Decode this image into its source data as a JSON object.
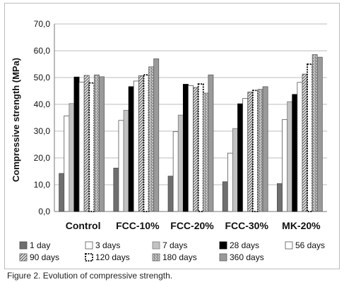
{
  "caption": "Figure 2. Evolution of compressive strength.",
  "chart_data": {
    "type": "bar",
    "ylabel": "Compressive strength (MPa)",
    "xlabel": "",
    "ylim": [
      0,
      70
    ],
    "yticks": [
      "0,0",
      "10,0",
      "20,0",
      "30,0",
      "40,0",
      "50,0",
      "60,0",
      "70,0"
    ],
    "grid": "horizontal",
    "legend_position": "bottom",
    "categories": [
      "Control",
      "FCC-10%",
      "FCC-20%",
      "FCC-30%",
      "MK-20%"
    ],
    "series": [
      {
        "name": "1 day",
        "values": [
          14.2,
          16.2,
          13.2,
          11.1,
          10.4
        ],
        "style": "dark-gray"
      },
      {
        "name": "3 days",
        "values": [
          35.7,
          34.0,
          29.8,
          21.8,
          34.3
        ],
        "style": "white"
      },
      {
        "name": "7 days",
        "values": [
          40.3,
          37.8,
          36.0,
          31.0,
          41.0
        ],
        "style": "light-gray"
      },
      {
        "name": "28 days",
        "values": [
          50.2,
          46.6,
          47.5,
          40.2,
          43.7
        ],
        "style": "black"
      },
      {
        "name": "56 days",
        "values": [
          48.3,
          48.7,
          47.0,
          42.2,
          48.2
        ],
        "style": "white"
      },
      {
        "name": "90 days",
        "values": [
          50.8,
          50.7,
          46.3,
          44.6,
          51.3
        ],
        "style": "hatched"
      },
      {
        "name": "120 days",
        "values": [
          48.0,
          51.0,
          47.6,
          45.2,
          55.0
        ],
        "style": "dotted-outline"
      },
      {
        "name": "180 days",
        "values": [
          51.0,
          54.0,
          44.2,
          45.6,
          58.6
        ],
        "style": "speckled"
      },
      {
        "name": "360 days",
        "values": [
          50.3,
          57.0,
          51.0,
          46.6,
          57.6
        ],
        "style": "mid-gray"
      }
    ]
  }
}
